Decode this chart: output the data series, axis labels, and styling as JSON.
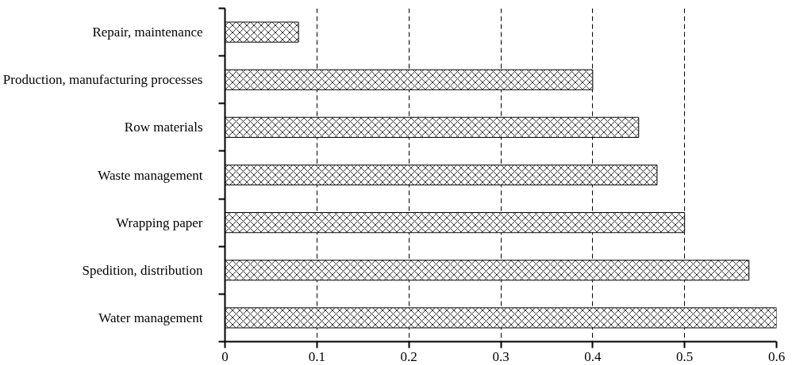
{
  "chart_data": {
    "type": "bar",
    "orientation": "horizontal",
    "categories": [
      "Repair, maintenance",
      "Production, manufacturing processes",
      "Row materials",
      "Waste management",
      "Wrapping paper",
      "Spedition, distribution",
      "Water management"
    ],
    "values": [
      0.08,
      0.4,
      0.45,
      0.47,
      0.5,
      0.57,
      0.6
    ],
    "color": "#000000",
    "xlim": [
      0,
      0.6
    ],
    "xticks": [
      0,
      0.1,
      0.2,
      0.3,
      0.4,
      0.5,
      0.6
    ],
    "grid": "x",
    "line_style": "dashed"
  }
}
